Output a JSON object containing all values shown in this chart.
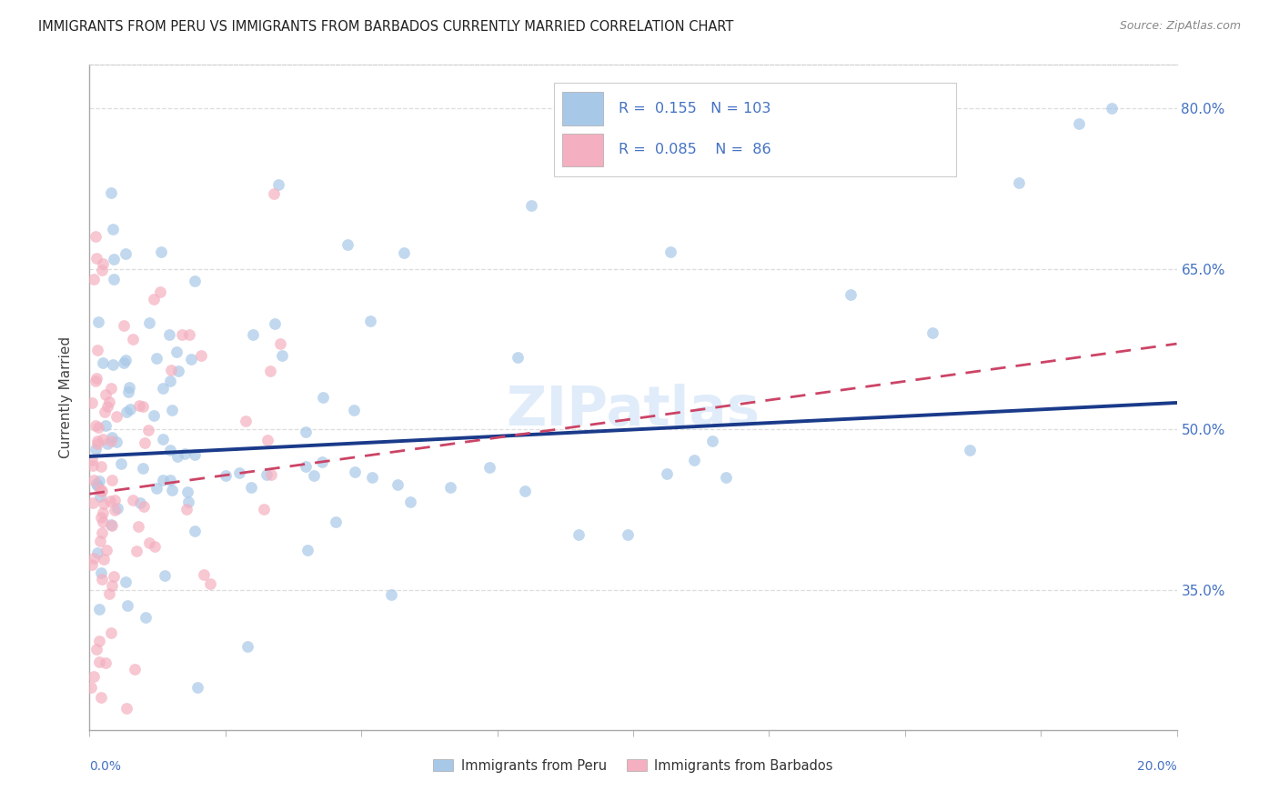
{
  "title": "IMMIGRANTS FROM PERU VS IMMIGRANTS FROM BARBADOS CURRENTLY MARRIED CORRELATION CHART",
  "source": "Source: ZipAtlas.com",
  "ylabel": "Currently Married",
  "right_yticks": [
    35.0,
    50.0,
    65.0,
    80.0
  ],
  "xlim": [
    0.0,
    20.0
  ],
  "ylim": [
    22.0,
    84.0
  ],
  "peru_R": 0.155,
  "peru_N": 103,
  "barbados_R": 0.085,
  "barbados_N": 86,
  "peru_color": "#a8c8e8",
  "barbados_color": "#f4b0c0",
  "trendline_peru_color": "#1a3a8a",
  "trendline_barbados_color": "#cc4466",
  "watermark": "ZIPatlas",
  "background_color": "#ffffff",
  "grid_color": "#dddddd",
  "legend_text_color": "#4472c4",
  "axis_label_color": "#4472c4",
  "title_color": "#222222",
  "source_color": "#888888"
}
